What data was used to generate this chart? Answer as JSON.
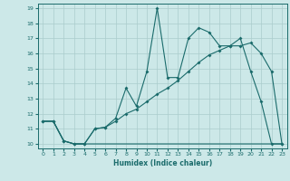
{
  "xlabel": "Humidex (Indice chaleur)",
  "ylabel": "",
  "bg_color": "#cce8e8",
  "grid_color": "#aacccc",
  "line_color": "#1a6b6b",
  "xlim": [
    -0.5,
    23.5
  ],
  "ylim": [
    9.7,
    19.3
  ],
  "xticks": [
    0,
    1,
    2,
    3,
    4,
    5,
    6,
    7,
    8,
    9,
    10,
    11,
    12,
    13,
    14,
    15,
    16,
    17,
    18,
    19,
    20,
    21,
    22,
    23
  ],
  "yticks": [
    10,
    11,
    12,
    13,
    14,
    15,
    16,
    17,
    18,
    19
  ],
  "series1_x": [
    0,
    1,
    2,
    3,
    4,
    5,
    6,
    7,
    8,
    9,
    10,
    11,
    12,
    13,
    14,
    15,
    16,
    17,
    18,
    19,
    20,
    21,
    22,
    23
  ],
  "series1_y": [
    11.5,
    11.5,
    10.2,
    10.0,
    10.0,
    11.0,
    11.1,
    11.7,
    13.7,
    12.5,
    14.8,
    19.0,
    14.4,
    14.4,
    17.0,
    17.7,
    17.4,
    16.5,
    16.5,
    17.0,
    14.8,
    12.8,
    10.0,
    10.0
  ],
  "series2_x": [
    0,
    1,
    2,
    3,
    4,
    5,
    6,
    7,
    8,
    9,
    10,
    11,
    12,
    13,
    14,
    15,
    16,
    17,
    18,
    19,
    20,
    21,
    22,
    23
  ],
  "series2_y": [
    11.5,
    11.5,
    10.2,
    10.0,
    10.0,
    10.0,
    10.0,
    10.0,
    10.0,
    10.0,
    10.0,
    10.0,
    10.0,
    10.0,
    10.0,
    10.0,
    10.0,
    10.0,
    10.0,
    10.0,
    10.0,
    10.0,
    10.0,
    10.0
  ],
  "series3_x": [
    0,
    1,
    2,
    3,
    4,
    5,
    6,
    7,
    8,
    9,
    10,
    11,
    12,
    13,
    14,
    15,
    16,
    17,
    18,
    19,
    20,
    21,
    22,
    23
  ],
  "series3_y": [
    11.5,
    11.5,
    10.2,
    10.0,
    10.0,
    11.0,
    11.1,
    11.5,
    12.0,
    12.3,
    12.8,
    13.3,
    13.7,
    14.2,
    14.8,
    15.4,
    15.9,
    16.2,
    16.5,
    16.5,
    16.7,
    16.0,
    14.8,
    10.0
  ]
}
